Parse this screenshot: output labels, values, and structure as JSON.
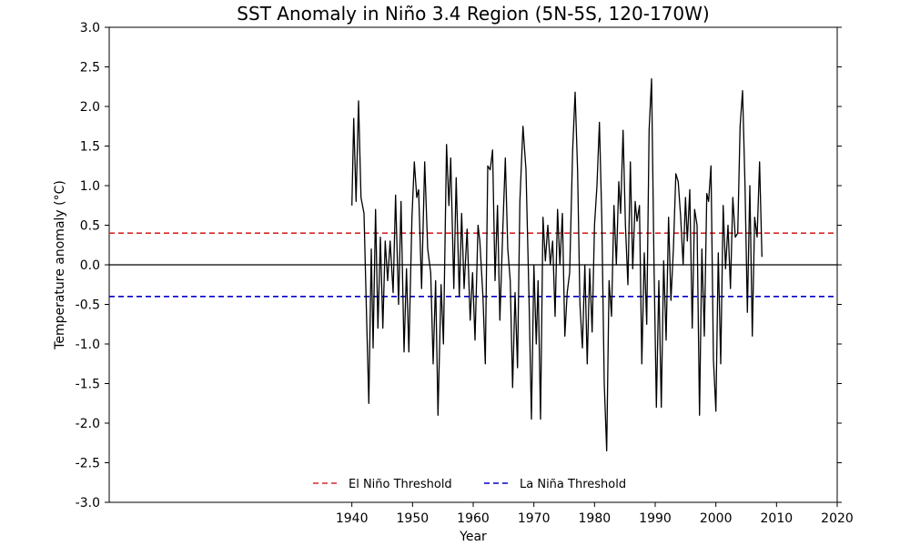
{
  "chart_data": {
    "type": "line",
    "title": "SST Anomaly in Niño 3.4 Region (5N-5S, 120-170W)",
    "xlabel": "Year",
    "ylabel": "Temperature anomaly (°C)",
    "xlim": [
      1900,
      2020
    ],
    "ylim": [
      -3.0,
      3.0
    ],
    "xticks": [
      1940,
      1950,
      1960,
      1970,
      1980,
      1990,
      2000,
      2010,
      2020
    ],
    "yticks": [
      "3.0",
      "2.5",
      "2.0",
      "1.5",
      "1.0",
      "0.5",
      "0.0",
      "-0.5",
      "-1.0",
      "-1.5",
      "-2.0",
      "-2.5",
      "-3.0"
    ],
    "grid": false,
    "legend_position": "bottom-center",
    "reference_lines": [
      {
        "y": 0.4,
        "name": "El Niño Threshold",
        "color": "#d62728",
        "style": "dashed"
      },
      {
        "y": -0.4,
        "name": "La Niña Threshold",
        "color": "#0000cc",
        "style": "dashed"
      },
      {
        "y": 0.0,
        "color": "#000000",
        "style": "solid"
      }
    ],
    "series": [
      {
        "color": "#000000",
        "points": [
          [
            1940.0,
            0.75
          ],
          [
            1940.3,
            1.85
          ],
          [
            1940.7,
            0.8
          ],
          [
            1941.1,
            2.07
          ],
          [
            1941.5,
            0.85
          ],
          [
            1942.0,
            0.65
          ],
          [
            1942.4,
            -0.6
          ],
          [
            1942.8,
            -1.75
          ],
          [
            1943.2,
            0.2
          ],
          [
            1943.5,
            -1.05
          ],
          [
            1943.9,
            0.7
          ],
          [
            1944.3,
            -0.8
          ],
          [
            1944.7,
            0.35
          ],
          [
            1945.1,
            -0.8
          ],
          [
            1945.5,
            0.3
          ],
          [
            1945.9,
            -0.2
          ],
          [
            1946.3,
            0.3
          ],
          [
            1946.8,
            -0.35
          ],
          [
            1947.2,
            0.88
          ],
          [
            1947.7,
            -0.5
          ],
          [
            1948.1,
            0.8
          ],
          [
            1948.6,
            -1.1
          ],
          [
            1949.0,
            -0.05
          ],
          [
            1949.4,
            -1.1
          ],
          [
            1949.9,
            0.6
          ],
          [
            1950.3,
            1.3
          ],
          [
            1950.7,
            0.85
          ],
          [
            1951.0,
            0.95
          ],
          [
            1951.5,
            -0.3
          ],
          [
            1952.0,
            1.3
          ],
          [
            1952.5,
            0.2
          ],
          [
            1953.0,
            -0.1
          ],
          [
            1953.4,
            -1.25
          ],
          [
            1953.8,
            -0.2
          ],
          [
            1954.2,
            -1.9
          ],
          [
            1954.7,
            -0.25
          ],
          [
            1955.1,
            -1.0
          ],
          [
            1955.6,
            1.52
          ],
          [
            1956.0,
            0.75
          ],
          [
            1956.3,
            1.35
          ],
          [
            1956.8,
            -0.3
          ],
          [
            1957.2,
            1.1
          ],
          [
            1957.7,
            -0.4
          ],
          [
            1958.1,
            0.65
          ],
          [
            1958.5,
            -0.3
          ],
          [
            1959.0,
            0.45
          ],
          [
            1959.5,
            -0.7
          ],
          [
            1959.9,
            -0.1
          ],
          [
            1960.3,
            -0.95
          ],
          [
            1960.8,
            0.5
          ],
          [
            1961.1,
            0.3
          ],
          [
            1961.6,
            -0.4
          ],
          [
            1962.0,
            -1.25
          ],
          [
            1962.4,
            1.25
          ],
          [
            1962.8,
            1.2
          ],
          [
            1963.2,
            1.45
          ],
          [
            1963.6,
            -0.2
          ],
          [
            1964.0,
            0.75
          ],
          [
            1964.4,
            -0.7
          ],
          [
            1964.9,
            0.5
          ],
          [
            1965.3,
            1.35
          ],
          [
            1965.7,
            0.2
          ],
          [
            1966.1,
            -0.2
          ],
          [
            1966.5,
            -1.55
          ],
          [
            1966.9,
            -0.35
          ],
          [
            1967.3,
            -1.3
          ],
          [
            1967.7,
            0.8
          ],
          [
            1968.2,
            1.75
          ],
          [
            1968.7,
            1.2
          ],
          [
            1969.2,
            -0.4
          ],
          [
            1969.6,
            -1.95
          ],
          [
            1970.0,
            0.0
          ],
          [
            1970.4,
            -1.0
          ],
          [
            1970.7,
            -0.2
          ],
          [
            1971.1,
            -1.95
          ],
          [
            1971.5,
            0.6
          ],
          [
            1971.9,
            0.05
          ],
          [
            1972.3,
            0.5
          ],
          [
            1972.7,
            0.0
          ],
          [
            1973.1,
            0.3
          ],
          [
            1973.5,
            -0.65
          ],
          [
            1973.9,
            0.7
          ],
          [
            1974.3,
            0.0
          ],
          [
            1974.7,
            0.65
          ],
          [
            1975.1,
            -0.9
          ],
          [
            1975.5,
            -0.35
          ],
          [
            1975.9,
            -0.1
          ],
          [
            1976.4,
            1.45
          ],
          [
            1976.8,
            2.18
          ],
          [
            1977.2,
            1.2
          ],
          [
            1977.6,
            -0.5
          ],
          [
            1978.0,
            -1.05
          ],
          [
            1978.4,
            0.0
          ],
          [
            1978.8,
            -1.25
          ],
          [
            1979.2,
            -0.05
          ],
          [
            1979.6,
            -0.85
          ],
          [
            1980.0,
            0.5
          ],
          [
            1980.4,
            1.0
          ],
          [
            1980.8,
            1.8
          ],
          [
            1981.2,
            0.6
          ],
          [
            1981.6,
            -1.5
          ],
          [
            1982.0,
            -2.35
          ],
          [
            1982.4,
            -0.2
          ],
          [
            1982.8,
            -0.65
          ],
          [
            1983.2,
            0.75
          ],
          [
            1983.6,
            0.0
          ],
          [
            1984.0,
            1.05
          ],
          [
            1984.3,
            0.65
          ],
          [
            1984.7,
            1.7
          ],
          [
            1985.1,
            0.5
          ],
          [
            1985.5,
            -0.25
          ],
          [
            1985.9,
            1.3
          ],
          [
            1986.3,
            -0.05
          ],
          [
            1986.7,
            0.8
          ],
          [
            1987.0,
            0.55
          ],
          [
            1987.4,
            0.75
          ],
          [
            1987.8,
            -1.25
          ],
          [
            1988.2,
            0.15
          ],
          [
            1988.6,
            -0.75
          ],
          [
            1989.0,
            1.7
          ],
          [
            1989.4,
            2.35
          ],
          [
            1989.8,
            0.0
          ],
          [
            1990.2,
            -1.8
          ],
          [
            1990.6,
            -0.2
          ],
          [
            1991.0,
            -1.8
          ],
          [
            1991.4,
            0.05
          ],
          [
            1991.8,
            -0.95
          ],
          [
            1992.2,
            0.6
          ],
          [
            1992.6,
            -0.45
          ],
          [
            1993.0,
            0.2
          ],
          [
            1993.4,
            1.15
          ],
          [
            1993.8,
            1.05
          ],
          [
            1994.2,
            0.6
          ],
          [
            1994.6,
            0.0
          ],
          [
            1995.0,
            0.85
          ],
          [
            1995.3,
            0.3
          ],
          [
            1995.7,
            0.95
          ],
          [
            1996.1,
            -0.8
          ],
          [
            1996.5,
            0.7
          ],
          [
            1996.9,
            0.5
          ],
          [
            1997.3,
            -1.9
          ],
          [
            1997.7,
            0.2
          ],
          [
            1998.1,
            -0.9
          ],
          [
            1998.5,
            0.9
          ],
          [
            1998.8,
            0.8
          ],
          [
            1999.2,
            1.25
          ],
          [
            1999.6,
            -1.2
          ],
          [
            2000.0,
            -1.85
          ],
          [
            2000.4,
            0.15
          ],
          [
            2000.8,
            -1.25
          ],
          [
            2001.2,
            0.75
          ],
          [
            2001.6,
            -0.05
          ],
          [
            2002.0,
            0.5
          ],
          [
            2002.4,
            -0.3
          ],
          [
            2002.8,
            0.85
          ],
          [
            2003.2,
            0.35
          ],
          [
            2003.6,
            0.4
          ],
          [
            2004.0,
            1.75
          ],
          [
            2004.4,
            2.2
          ],
          [
            2004.8,
            1.0
          ],
          [
            2005.2,
            -0.6
          ],
          [
            2005.6,
            1.0
          ],
          [
            2006.0,
            -0.9
          ],
          [
            2006.4,
            0.6
          ],
          [
            2006.8,
            0.35
          ],
          [
            2007.2,
            1.3
          ],
          [
            2007.6,
            0.1
          ]
        ]
      }
    ]
  }
}
